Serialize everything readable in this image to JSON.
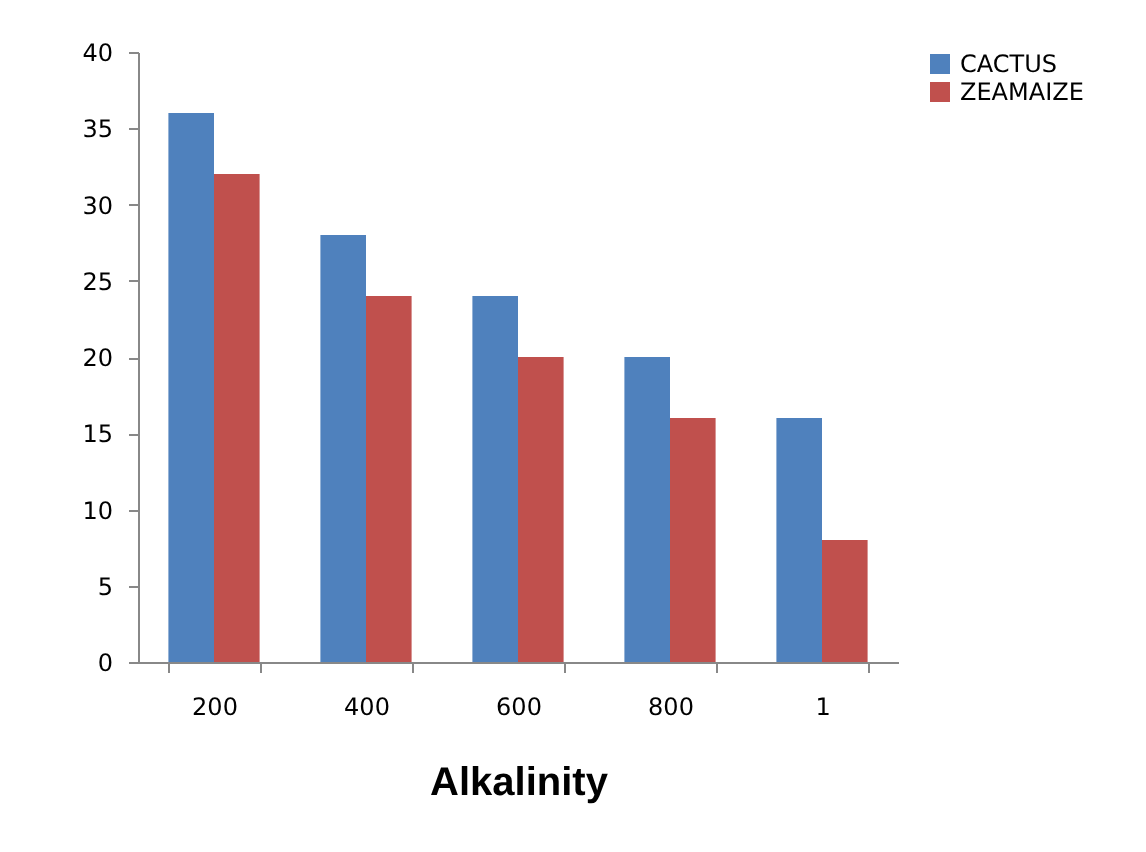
{
  "chart_data": {
    "type": "bar",
    "xlabel": "Alkalinity",
    "categories": [
      "200",
      "400",
      "600",
      "800",
      "1"
    ],
    "series": [
      {
        "name": "CACTUS",
        "color": "#4f81bd",
        "values": [
          36,
          28,
          24,
          20,
          16
        ]
      },
      {
        "name": "ZEAMAIZE",
        "color": "#c0504d",
        "values": [
          32,
          24,
          20,
          16,
          8
        ]
      }
    ],
    "ylim": [
      0,
      40
    ],
    "yticks": [
      0,
      5,
      10,
      15,
      20,
      25,
      30,
      35,
      40
    ],
    "grid": false,
    "legend": "right"
  }
}
